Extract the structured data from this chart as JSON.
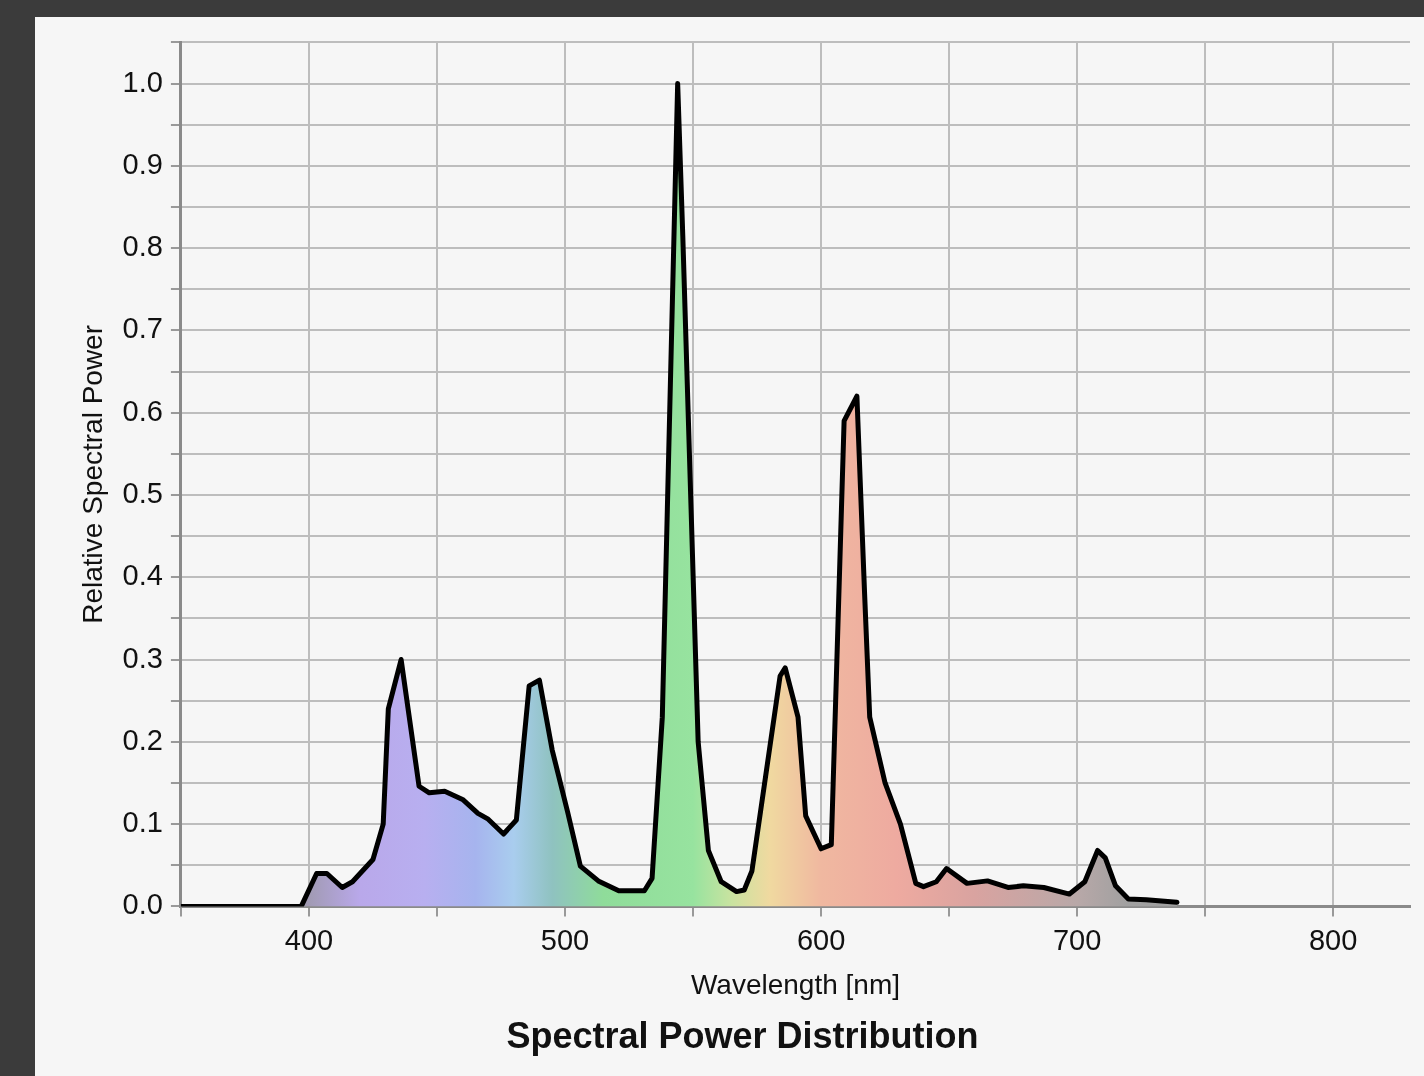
{
  "chart_data": {
    "type": "area",
    "title": "Spectral Power Distribution",
    "xlabel": "Wavelength [nm]",
    "ylabel": "Relative Spectral Power",
    "xlim": [
      350,
      830
    ],
    "xticks": [
      {
        "value": 350,
        "label": null
      },
      400,
      {
        "value": 450,
        "label": null
      },
      500,
      {
        "value": 550,
        "label": null
      },
      600,
      {
        "value": 650,
        "label": null
      },
      700,
      {
        "value": 750,
        "label": null
      },
      800
    ],
    "ylim": [
      0,
      1.05
    ],
    "yticks": [
      {
        "value": 0,
        "label": "0.0"
      },
      {
        "value": 0.05,
        "label": null
      },
      {
        "value": 0.1,
        "label": "0.1"
      },
      {
        "value": 0.15,
        "label": null
      },
      {
        "value": 0.2,
        "label": "0.2"
      },
      {
        "value": 0.25,
        "label": null
      },
      {
        "value": 0.3,
        "label": "0.3"
      },
      {
        "value": 0.35,
        "label": null
      },
      {
        "value": 0.4,
        "label": "0.4"
      },
      {
        "value": 0.45,
        "label": null
      },
      {
        "value": 0.5,
        "label": "0.5"
      },
      {
        "value": 0.55,
        "label": null
      },
      {
        "value": 0.6,
        "label": "0.6"
      },
      {
        "value": 0.65,
        "label": null
      },
      {
        "value": 0.7,
        "label": "0.7"
      },
      {
        "value": 0.75,
        "label": null
      },
      {
        "value": 0.8,
        "label": "0.8"
      },
      {
        "value": 0.85,
        "label": null
      },
      {
        "value": 0.9,
        "label": "0.9"
      },
      {
        "value": 0.95,
        "label": null
      },
      {
        "value": 1.0,
        "label": "1.0"
      },
      {
        "value": 1.05,
        "label": null
      }
    ],
    "grid": true,
    "legend": false,
    "marker": "none",
    "line_style": "solid",
    "series": [
      {
        "color": "#000000",
        "x": [
          350,
          397,
          403,
          407,
          413,
          417,
          425,
          429,
          431,
          436,
          443,
          447,
          453,
          460,
          466,
          470,
          476,
          481,
          486,
          490,
          495,
          501,
          506,
          513,
          521,
          531,
          534,
          538,
          544,
          546,
          552,
          556,
          561,
          567,
          570,
          573,
          584,
          586,
          591,
          594,
          600,
          604,
          609,
          614,
          617,
          619,
          625,
          631,
          637,
          640,
          645,
          649,
          657,
          665,
          673,
          679,
          687,
          697,
          703,
          708,
          711,
          715,
          720,
          727,
          739
        ],
        "values": [
          0,
          0,
          0.04,
          0.04,
          0.023,
          0.03,
          0.057,
          0.1,
          0.24,
          0.3,
          0.146,
          0.138,
          0.14,
          0.13,
          0.113,
          0.106,
          0.088,
          0.105,
          0.268,
          0.275,
          0.19,
          0.115,
          0.049,
          0.031,
          0.019,
          0.019,
          0.034,
          0.23,
          1.0,
          0.815,
          0.2,
          0.068,
          0.03,
          0.018,
          0.02,
          0.043,
          0.28,
          0.29,
          0.23,
          0.11,
          0.07,
          0.075,
          0.59,
          0.62,
          0.38,
          0.23,
          0.15,
          0.1,
          0.028,
          0.024,
          0.03,
          0.046,
          0.028,
          0.031,
          0.023,
          0.025,
          0.023,
          0.015,
          0.03,
          0.068,
          0.059,
          0.025,
          0.009,
          0.008,
          0.005
        ]
      }
    ]
  }
}
